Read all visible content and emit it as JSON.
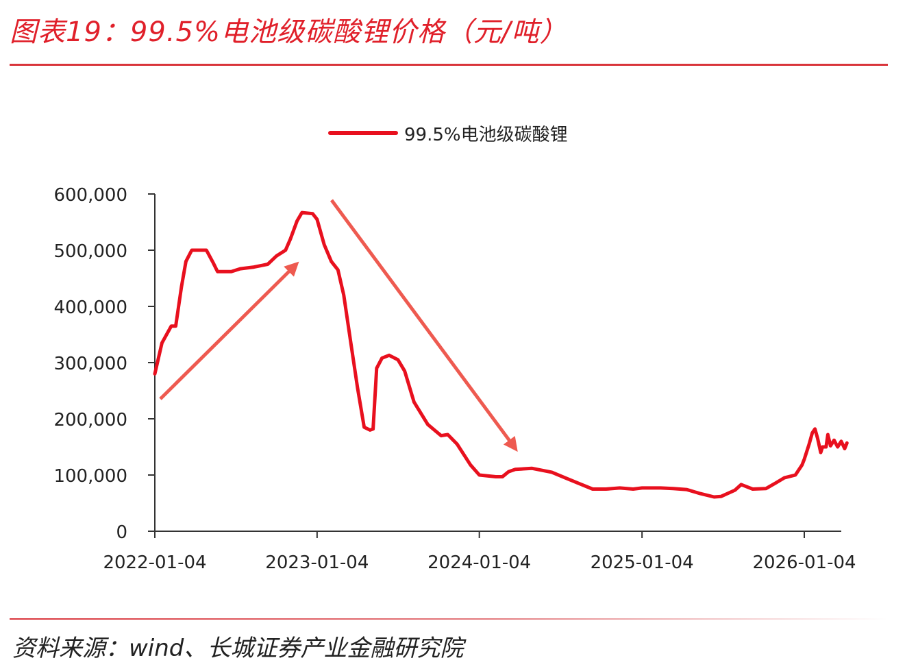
{
  "header": {
    "title": "图表19：99.5%电池级碳酸锂价格（元/吨）"
  },
  "footer": {
    "source": "资料来源：wind、长城证券产业金融研究院"
  },
  "colors": {
    "accent": "#e0202a",
    "series_line": "#e8101e",
    "arrow": "#ee5a50",
    "axis": "#333333"
  },
  "chart_data": {
    "type": "line",
    "title": "",
    "xlabel": "",
    "ylabel": "",
    "legend_position": "top-center",
    "grid": false,
    "x_ticks": [
      "2022-01-04",
      "2023-01-04",
      "2024-01-04",
      "2025-01-04",
      "2026-01-04"
    ],
    "y_ticks": [
      0,
      100000,
      200000,
      300000,
      400000,
      500000,
      600000
    ],
    "y_tick_labels": [
      "0",
      "100,000",
      "200,000",
      "300,000",
      "400,000",
      "500,000",
      "600,000"
    ],
    "xlim": [
      "2022-01-04",
      "2026-04-10"
    ],
    "ylim": [
      0,
      600000
    ],
    "series": [
      {
        "name": "99.5%电池级碳酸锂",
        "points": [
          [
            "2022-01-04",
            280000
          ],
          [
            "2022-01-20",
            335000
          ],
          [
            "2022-02-10",
            365000
          ],
          [
            "2022-02-20",
            365000
          ],
          [
            "2022-03-05",
            435000
          ],
          [
            "2022-03-15",
            480000
          ],
          [
            "2022-03-28",
            500000
          ],
          [
            "2022-04-30",
            500000
          ],
          [
            "2022-05-15",
            478000
          ],
          [
            "2022-05-25",
            462000
          ],
          [
            "2022-06-25",
            462000
          ],
          [
            "2022-07-15",
            467000
          ],
          [
            "2022-08-15",
            470000
          ],
          [
            "2022-09-15",
            475000
          ],
          [
            "2022-10-05",
            490000
          ],
          [
            "2022-10-25",
            500000
          ],
          [
            "2022-11-05",
            520000
          ],
          [
            "2022-11-20",
            552000
          ],
          [
            "2022-12-01",
            567000
          ],
          [
            "2022-12-25",
            565000
          ],
          [
            "2023-01-04",
            555000
          ],
          [
            "2023-01-20",
            510000
          ],
          [
            "2023-02-05",
            480000
          ],
          [
            "2023-02-20",
            465000
          ],
          [
            "2023-03-05",
            420000
          ],
          [
            "2023-03-20",
            340000
          ],
          [
            "2023-04-05",
            255000
          ],
          [
            "2023-04-20",
            185000
          ],
          [
            "2023-05-03",
            180000
          ],
          [
            "2023-05-10",
            182000
          ],
          [
            "2023-05-18",
            290000
          ],
          [
            "2023-05-30",
            308000
          ],
          [
            "2023-06-15",
            313000
          ],
          [
            "2023-07-05",
            305000
          ],
          [
            "2023-07-20",
            285000
          ],
          [
            "2023-08-10",
            230000
          ],
          [
            "2023-09-10",
            190000
          ],
          [
            "2023-10-10",
            170000
          ],
          [
            "2023-10-25",
            172000
          ],
          [
            "2023-11-15",
            155000
          ],
          [
            "2023-12-15",
            118000
          ],
          [
            "2024-01-04",
            100000
          ],
          [
            "2024-02-10",
            97000
          ],
          [
            "2024-02-25",
            97000
          ],
          [
            "2024-03-10",
            106000
          ],
          [
            "2024-03-25",
            110000
          ],
          [
            "2024-05-01",
            112000
          ],
          [
            "2024-06-15",
            105000
          ],
          [
            "2024-07-15",
            95000
          ],
          [
            "2024-08-15",
            85000
          ],
          [
            "2024-09-15",
            75000
          ],
          [
            "2024-10-15",
            75000
          ],
          [
            "2024-11-15",
            77000
          ],
          [
            "2024-12-15",
            75000
          ],
          [
            "2025-01-04",
            77000
          ],
          [
            "2025-02-15",
            77000
          ],
          [
            "2025-03-15",
            76000
          ],
          [
            "2025-04-15",
            74000
          ],
          [
            "2025-05-15",
            67000
          ],
          [
            "2025-06-15",
            61000
          ],
          [
            "2025-07-01",
            62000
          ],
          [
            "2025-07-15",
            67000
          ],
          [
            "2025-08-01",
            73000
          ],
          [
            "2025-08-15",
            83000
          ],
          [
            "2025-08-25",
            80000
          ],
          [
            "2025-09-10",
            75000
          ],
          [
            "2025-10-10",
            76000
          ],
          [
            "2025-11-01",
            86000
          ],
          [
            "2025-11-20",
            95000
          ],
          [
            "2025-12-15",
            100000
          ],
          [
            "2025-12-30",
            118000
          ],
          [
            "2026-01-04",
            128000
          ],
          [
            "2026-01-15",
            155000
          ],
          [
            "2026-01-22",
            175000
          ],
          [
            "2026-01-28",
            182000
          ],
          [
            "2026-02-03",
            165000
          ],
          [
            "2026-02-10",
            140000
          ],
          [
            "2026-02-14",
            150000
          ],
          [
            "2026-02-22",
            150000
          ],
          [
            "2026-02-26",
            172000
          ],
          [
            "2026-03-04",
            152000
          ],
          [
            "2026-03-12",
            162000
          ],
          [
            "2026-03-20",
            150000
          ],
          [
            "2026-03-28",
            160000
          ],
          [
            "2026-04-05",
            147000
          ],
          [
            "2026-04-10",
            157000
          ]
        ]
      }
    ]
  }
}
